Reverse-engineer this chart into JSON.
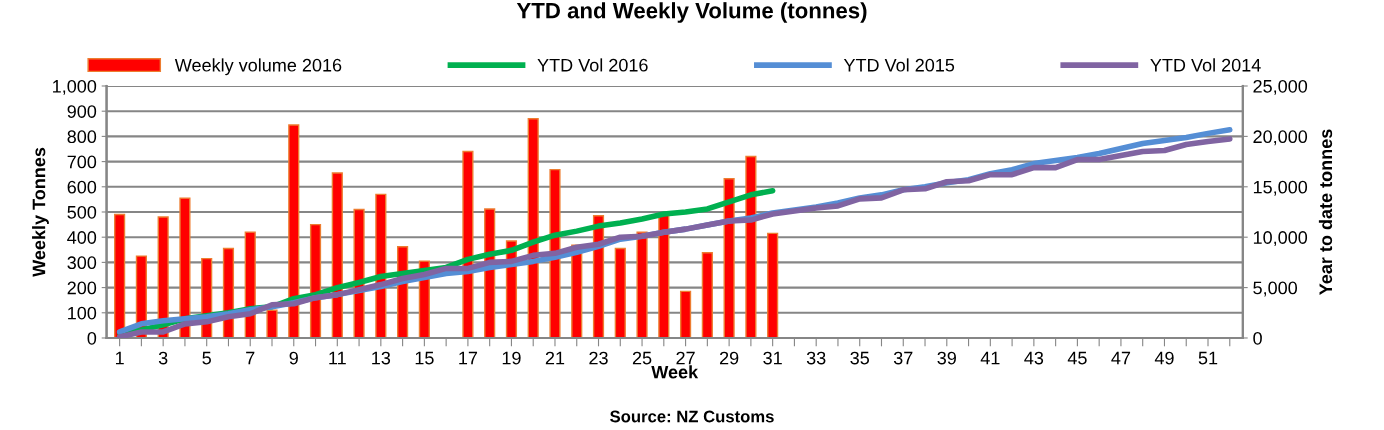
{
  "chart_data": {
    "type": "bar",
    "title": "YTD and Weekly Volume (tonnes)",
    "xlabel": "Week",
    "ylabel": "Weekly Tonnes",
    "y2label": "Year to date tonnes",
    "annotations": [
      "Source: NZ Customs"
    ],
    "categories": [
      "1",
      null,
      "3",
      null,
      "5",
      null,
      "7",
      null,
      "9",
      null,
      "11",
      null,
      "13",
      null,
      "15",
      null,
      "17",
      null,
      "19",
      null,
      "21",
      null,
      "23",
      null,
      "25",
      null,
      "27",
      null,
      "29",
      null,
      "31",
      null,
      "33",
      null,
      "35",
      null,
      "37",
      null,
      "39",
      null,
      "41",
      null,
      "43",
      null,
      "45",
      null,
      "47",
      null,
      "49",
      null,
      "51",
      null
    ],
    "series": [
      {
        "name": "Weekly volume 2016",
        "color": "#ff0000",
        "values": [
          490,
          325,
          480,
          555,
          315,
          355,
          420,
          110,
          845,
          450,
          655,
          510,
          570,
          362,
          305,
          null,
          740,
          512,
          385,
          870,
          668,
          368,
          485,
          355,
          420,
          490,
          185,
          338,
          632,
          720,
          415,
          null,
          null,
          null,
          null,
          null,
          null,
          null,
          null,
          null,
          null,
          null,
          null,
          null,
          null,
          null,
          null,
          null,
          null,
          null,
          null,
          null
        ]
      },
      {
        "name": "YTD Vol 2016",
        "type": "line",
        "axis": "y2",
        "color": "#00b050",
        "values": [
          500,
          800,
          1300,
          1900,
          2200,
          2500,
          2900,
          3100,
          3900,
          4300,
          5000,
          5500,
          6100,
          6400,
          6700,
          7000,
          7800,
          8300,
          8700,
          9500,
          10200,
          10600,
          11100,
          11400,
          11800,
          12300,
          12500,
          12800,
          13500,
          14200,
          14600,
          null,
          null,
          null,
          null,
          null,
          null,
          null,
          null,
          null,
          null,
          null,
          null,
          null,
          null,
          null,
          null,
          null,
          null,
          null,
          null,
          null
        ]
      },
      {
        "name": "YTD Vol 2015",
        "type": "line",
        "axis": "y2",
        "color": "#558ed5",
        "values": [
          600,
          1400,
          1700,
          1900,
          2100,
          2400,
          2800,
          3100,
          3500,
          4000,
          4300,
          4700,
          5100,
          5600,
          6000,
          6400,
          6600,
          7000,
          7300,
          7600,
          8000,
          8500,
          9100,
          9800,
          10100,
          10500,
          10800,
          11200,
          11600,
          11900,
          12400,
          12700,
          13000,
          13400,
          13900,
          14200,
          14700,
          15000,
          15400,
          15700,
          16300,
          16700,
          17300,
          17600,
          17900,
          18300,
          18800,
          19300,
          19600,
          19900,
          20300,
          20650
        ]
      },
      {
        "name": "YTD Vol 2014",
        "type": "line",
        "axis": "y2",
        "color": "#8064a2",
        "values": [
          100,
          600,
          600,
          1400,
          1600,
          2100,
          2400,
          3300,
          3400,
          4000,
          4300,
          4800,
          5300,
          5900,
          6300,
          6900,
          6900,
          7500,
          7600,
          8200,
          8400,
          9000,
          9300,
          10000,
          10100,
          10500,
          10800,
          11200,
          11600,
          11700,
          12300,
          12600,
          12900,
          13100,
          13800,
          13900,
          14700,
          14800,
          15500,
          15600,
          16200,
          16200,
          16900,
          16900,
          17700,
          17700,
          18100,
          18500,
          18600,
          19200,
          19500,
          19750
        ]
      }
    ],
    "ylim": [
      0,
      1000
    ],
    "yticks": [
      0,
      100,
      200,
      300,
      400,
      500,
      600,
      700,
      800,
      900,
      {
        "value": 1000,
        "label": "1,000"
      }
    ],
    "y2lim": [
      0,
      25000
    ],
    "y2ticks": [
      0,
      {
        "value": 5000,
        "label": "5,000"
      },
      {
        "value": 10000,
        "label": "10,000"
      },
      {
        "value": 15000,
        "label": "15,000"
      },
      {
        "value": 20000,
        "label": "20,000"
      },
      {
        "value": 25000,
        "label": "25,000"
      }
    ],
    "grid": "y",
    "legend": "top",
    "marker": "none",
    "line_style": "solid"
  }
}
